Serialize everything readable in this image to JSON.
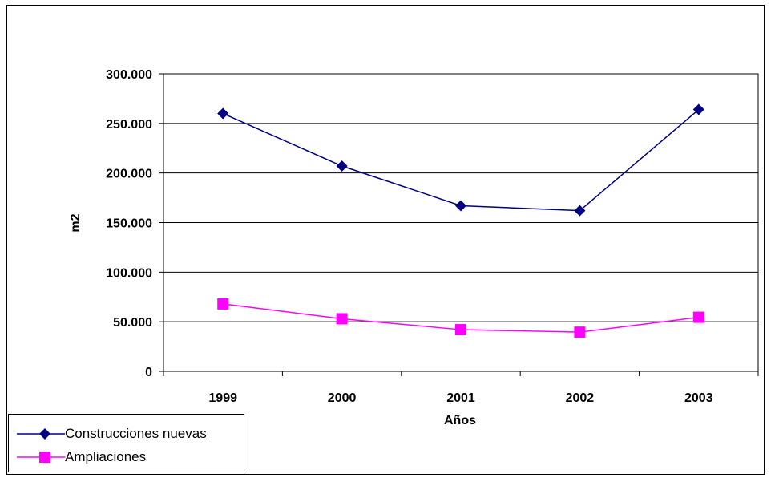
{
  "chart_data": {
    "type": "line",
    "categories": [
      "1999",
      "2000",
      "2001",
      "2002",
      "2003"
    ],
    "series": [
      {
        "name": "Construcciones nuevas",
        "values": [
          260000,
          207000,
          167000,
          162000,
          264000
        ],
        "color": "#000080",
        "marker": "diamond"
      },
      {
        "name": "Ampliaciones",
        "values": [
          68000,
          53000,
          42000,
          39500,
          54500
        ],
        "color": "#FF00FF",
        "marker": "square"
      }
    ],
    "title": "",
    "xlabel": "Años",
    "ylabel": "m2",
    "ylim": [
      0,
      300000
    ],
    "yticks": [
      {
        "value": 0,
        "label": "0"
      },
      {
        "value": 50000,
        "label": "50.000"
      },
      {
        "value": 100000,
        "label": "100.000"
      },
      {
        "value": 150000,
        "label": "150.000"
      },
      {
        "value": 200000,
        "label": "200.000"
      },
      {
        "value": 250000,
        "label": "250.000"
      },
      {
        "value": 300000,
        "label": "300.000"
      }
    ],
    "grid": true,
    "legend": "bottom-left"
  }
}
